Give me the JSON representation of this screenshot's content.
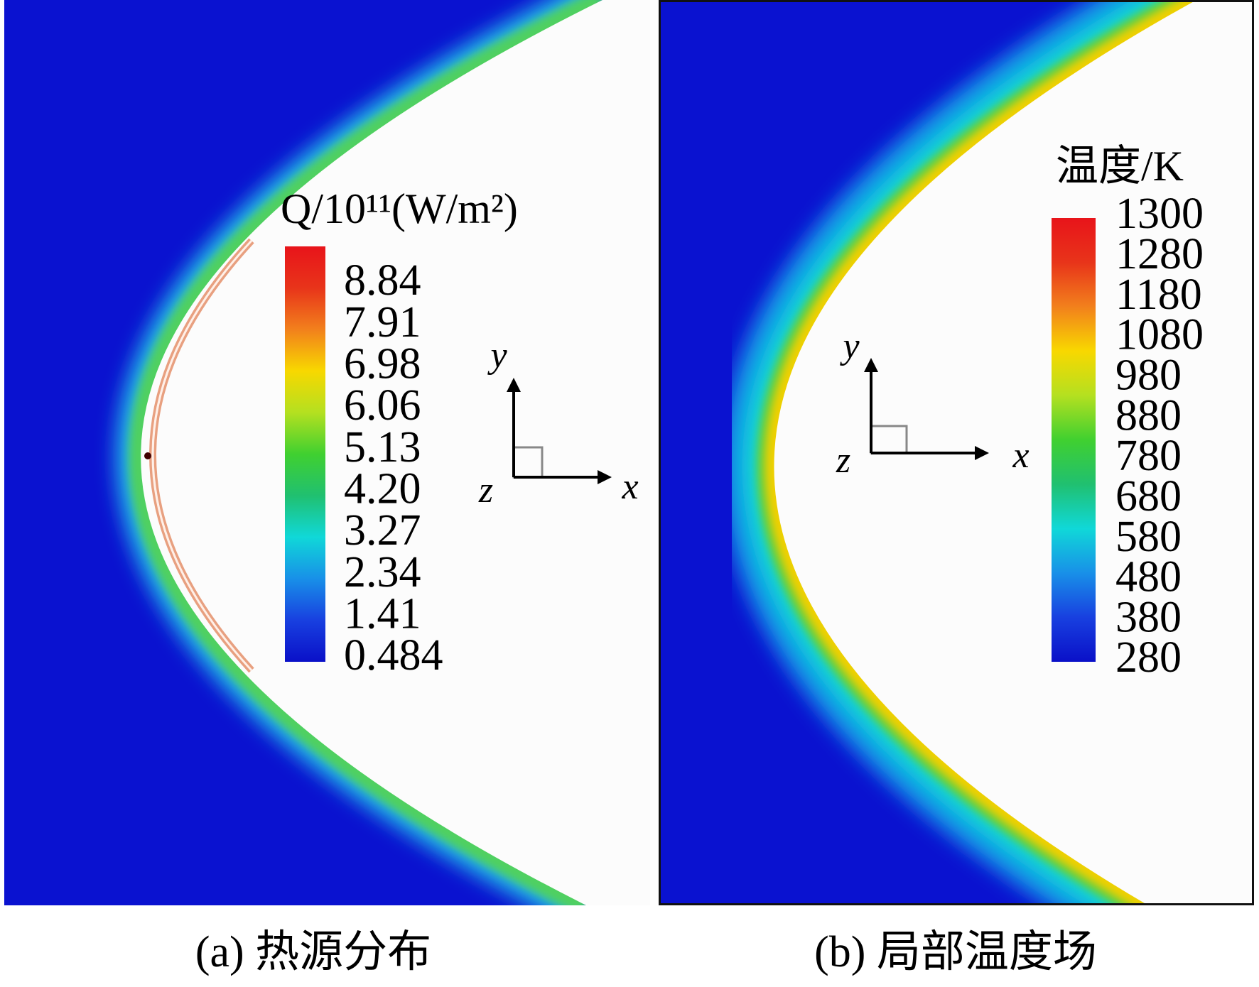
{
  "panels": [
    {
      "caption": "(a) 热源分布",
      "colorbar": {
        "title": "Q/10¹¹(W/m²)",
        "ticks": [
          "8.84",
          "7.91",
          "6.98",
          "6.06",
          "5.13",
          "4.20",
          "3.27",
          "2.34",
          "1.41",
          "0.484"
        ]
      },
      "axes": {
        "x": "x",
        "y": "y",
        "z": "z"
      }
    },
    {
      "caption": "(b) 局部温度场",
      "colorbar": {
        "title": "温度/K",
        "ticks": [
          "1300",
          "1280",
          "1180",
          "1080",
          "980",
          "880",
          "780",
          "680",
          "580",
          "480",
          "380",
          "280"
        ]
      },
      "axes": {
        "x": "x",
        "y": "y",
        "z": "z"
      }
    }
  ]
}
